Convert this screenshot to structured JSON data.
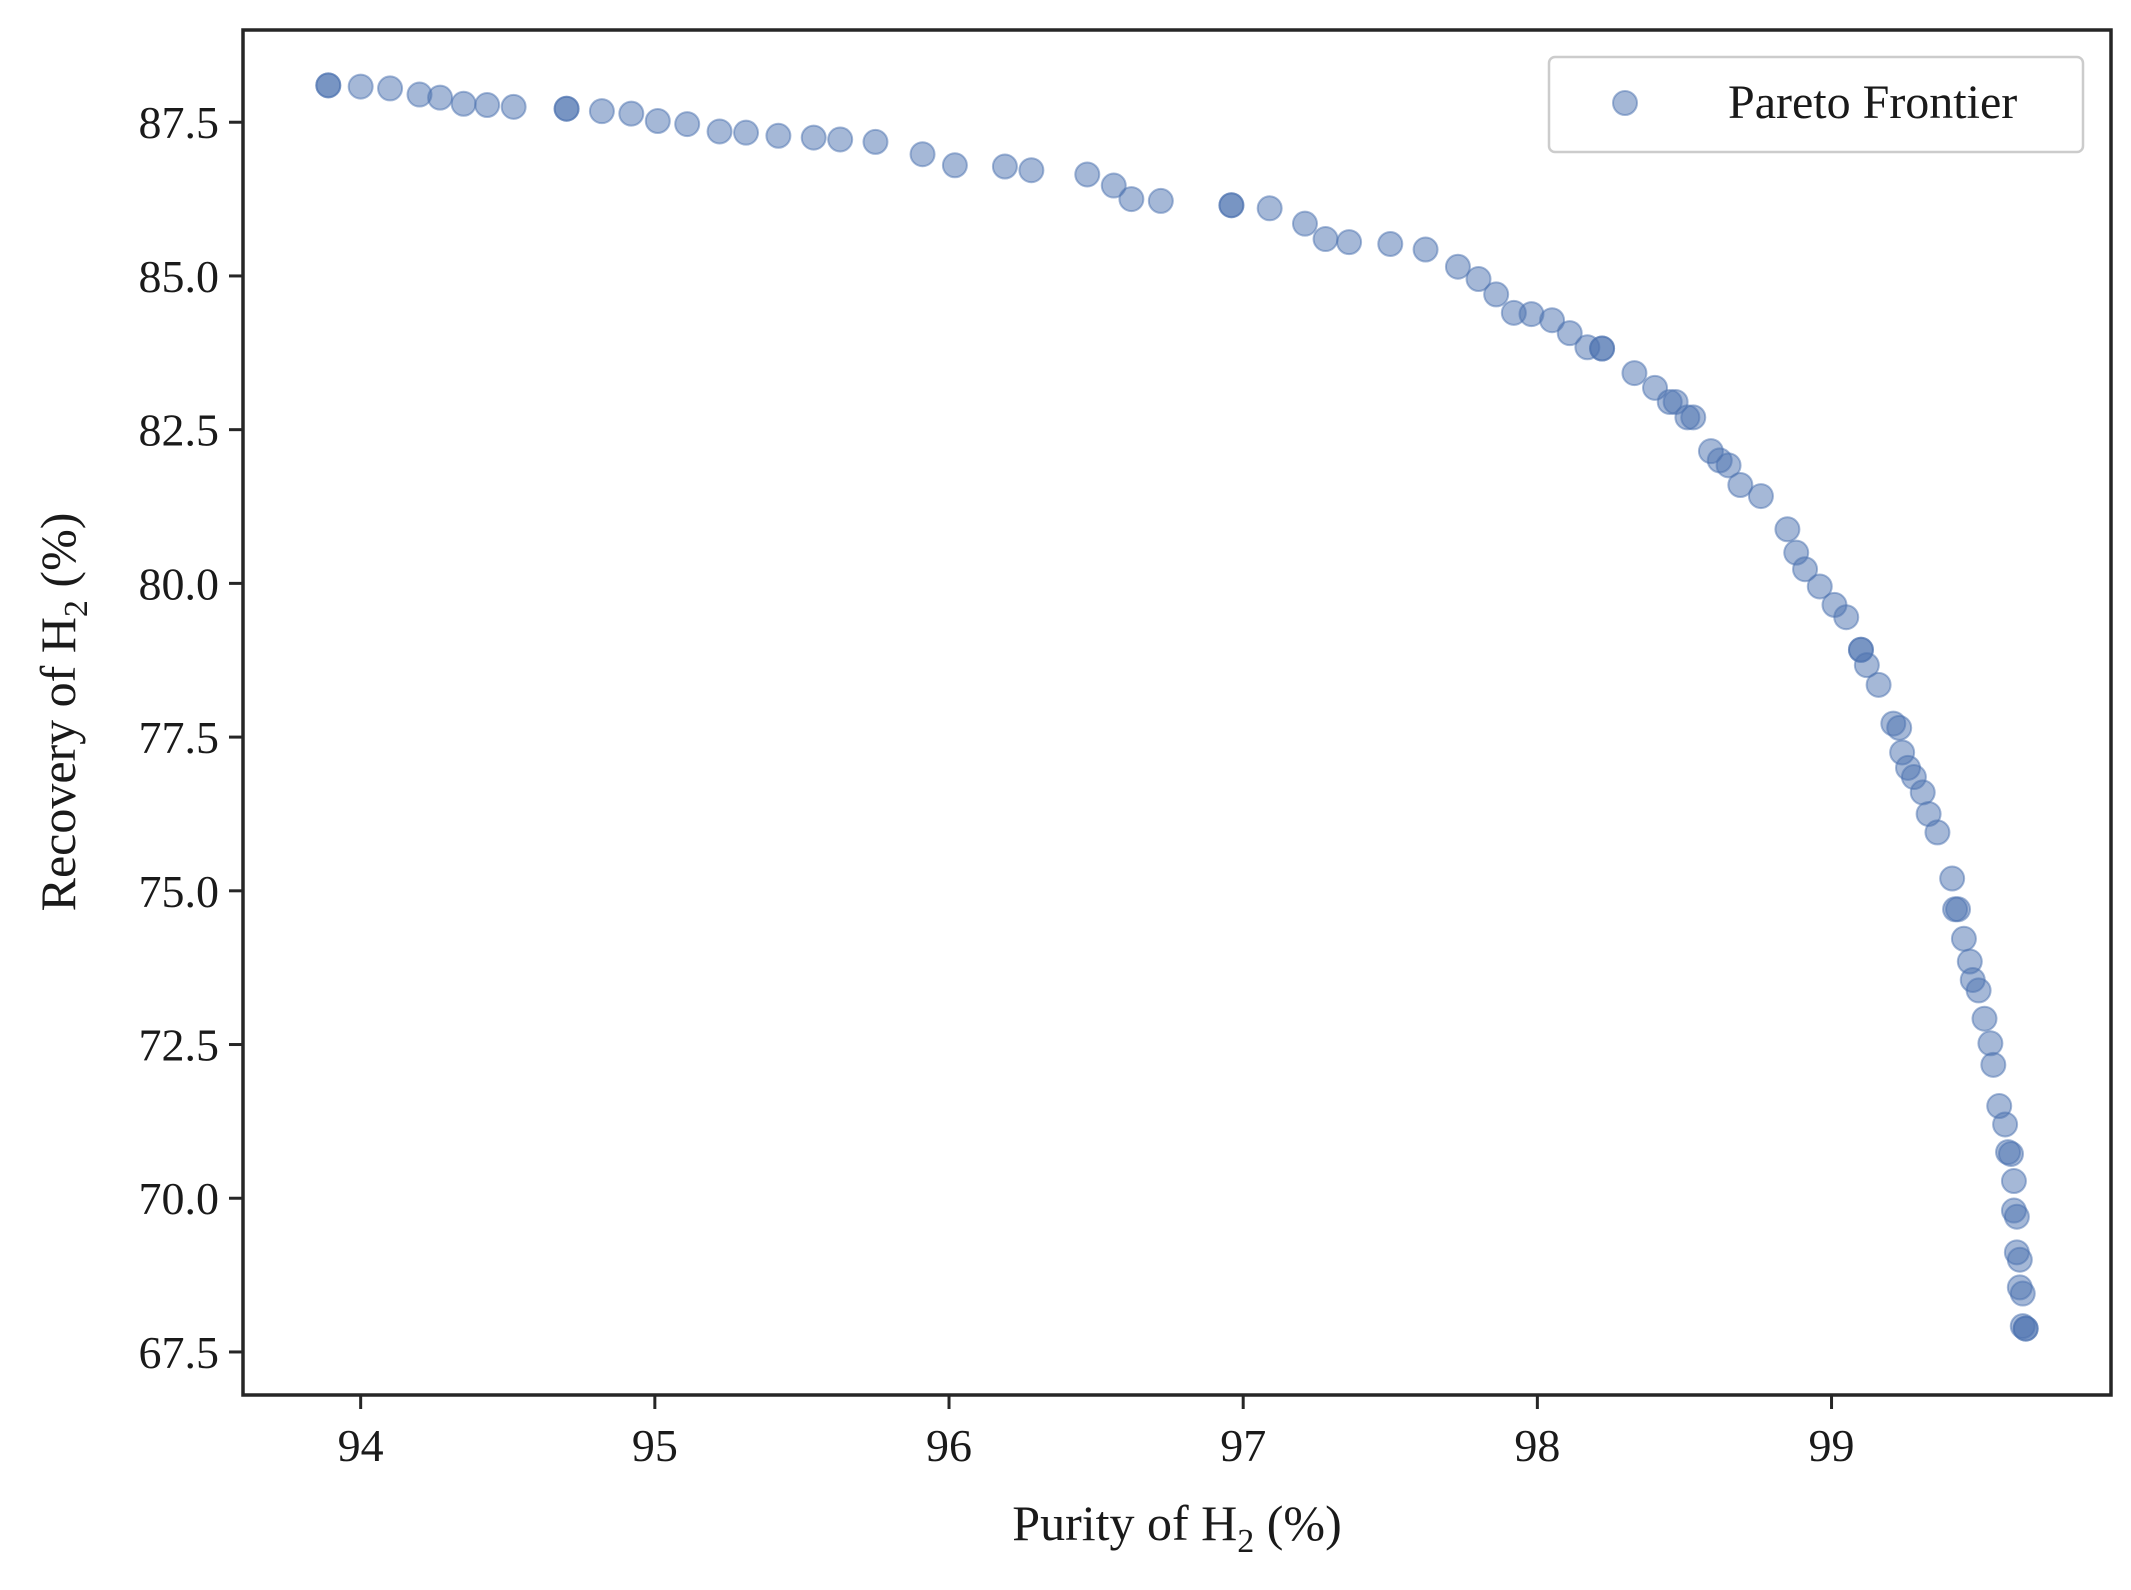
{
  "chart_data": {
    "type": "scatter",
    "title": "",
    "xlabel": "Purity of H",
    "xlabel_sub": "2",
    "xlabel_tail": " (%)",
    "ylabel": "Recovery of H",
    "ylabel_sub": "2",
    "ylabel_tail": " (%)",
    "xlim": [
      93.6,
      99.95
    ],
    "ylim": [
      66.8,
      89.0
    ],
    "xticks": [
      94,
      95,
      96,
      97,
      98,
      99
    ],
    "xtick_labels": [
      "94",
      "95",
      "96",
      "97",
      "98",
      "99"
    ],
    "yticks": [
      67.5,
      70.0,
      72.5,
      75.0,
      77.5,
      80.0,
      82.5,
      85.0,
      87.5
    ],
    "ytick_labels": [
      "67.5",
      "70.0",
      "72.5",
      "75.0",
      "77.5",
      "80.0",
      "82.5",
      "85.0",
      "87.5"
    ],
    "grid": false,
    "legend": {
      "position": "top-right",
      "entries": [
        "Pareto Frontier"
      ]
    },
    "series": [
      {
        "name": "Pareto Frontier",
        "color": "#4C72B0",
        "alpha": 0.5,
        "x": [
          93.89,
          93.89,
          94.0,
          94.1,
          94.2,
          94.27,
          94.35,
          94.43,
          94.52,
          94.7,
          94.7,
          94.82,
          94.92,
          95.01,
          95.11,
          95.22,
          95.31,
          95.42,
          95.54,
          95.63,
          95.75,
          95.91,
          96.02,
          96.19,
          96.28,
          96.47,
          96.56,
          96.62,
          96.72,
          96.96,
          96.96,
          97.09,
          97.21,
          97.28,
          97.36,
          97.5,
          97.62,
          97.73,
          97.8,
          97.86,
          97.92,
          97.98,
          98.05,
          98.11,
          98.17,
          98.22,
          98.22,
          98.33,
          98.4,
          98.45,
          98.47,
          98.51,
          98.53,
          98.59,
          98.62,
          98.65,
          98.69,
          98.76,
          98.85,
          98.88,
          98.91,
          98.96,
          99.01,
          99.05,
          99.1,
          99.1,
          99.12,
          99.16,
          99.21,
          99.23,
          99.24,
          99.26,
          99.28,
          99.31,
          99.33,
          99.36,
          99.41,
          99.42,
          99.43,
          99.45,
          99.47,
          99.48,
          99.5,
          99.52,
          99.54,
          99.55,
          99.57,
          99.59,
          99.6,
          99.61,
          99.62,
          99.62,
          99.63,
          99.63,
          99.64,
          99.64,
          99.65,
          99.65,
          99.66,
          99.66
        ],
        "y": [
          88.1,
          88.1,
          88.08,
          88.05,
          87.95,
          87.9,
          87.8,
          87.78,
          87.75,
          87.72,
          87.72,
          87.68,
          87.64,
          87.52,
          87.47,
          87.35,
          87.33,
          87.28,
          87.25,
          87.22,
          87.18,
          86.98,
          86.8,
          86.78,
          86.72,
          86.65,
          86.47,
          86.25,
          86.22,
          86.15,
          86.15,
          86.1,
          85.85,
          85.6,
          85.55,
          85.52,
          85.43,
          85.15,
          84.95,
          84.7,
          84.4,
          84.38,
          84.28,
          84.07,
          83.84,
          83.82,
          83.82,
          83.42,
          83.18,
          82.95,
          82.95,
          82.7,
          82.7,
          82.15,
          82.0,
          81.92,
          81.6,
          81.42,
          80.88,
          80.5,
          80.23,
          79.95,
          79.65,
          79.45,
          78.92,
          78.92,
          78.67,
          78.35,
          77.72,
          77.65,
          77.25,
          77.0,
          76.85,
          76.6,
          76.25,
          75.95,
          75.2,
          74.7,
          74.7,
          74.22,
          73.85,
          73.55,
          73.38,
          72.92,
          72.52,
          72.17,
          71.5,
          71.2,
          70.75,
          70.72,
          70.28,
          69.8,
          69.7,
          69.12,
          69.0,
          68.55,
          68.45,
          67.92,
          67.88,
          67.88
        ]
      }
    ]
  }
}
